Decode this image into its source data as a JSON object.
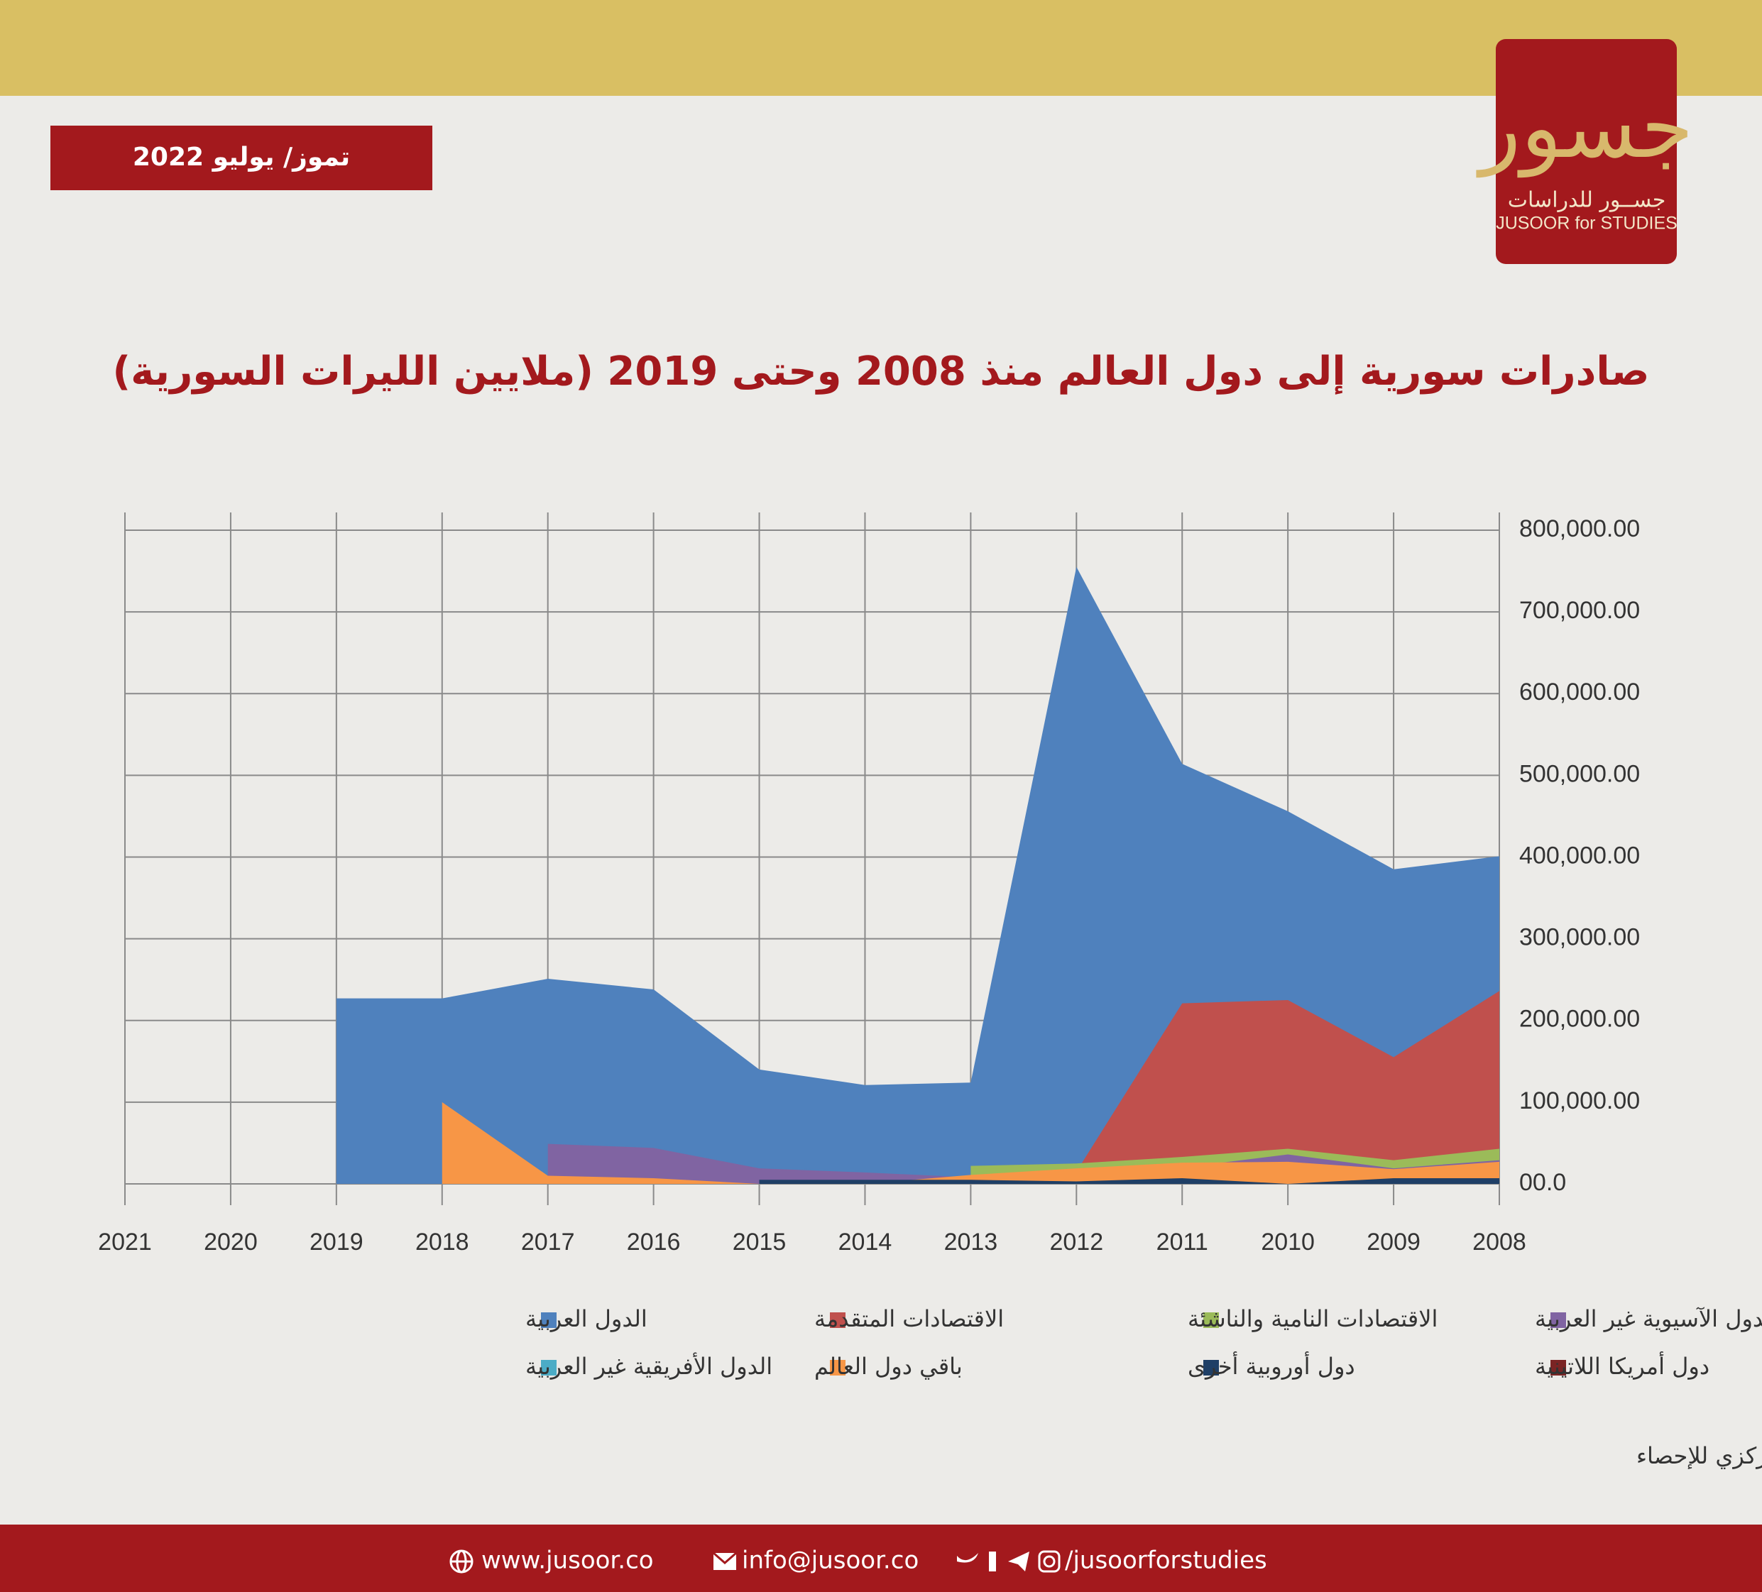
{
  "logo": {
    "mark": "جسور",
    "name_ar": "جســور للدراسات",
    "name_en": "JUSOOR for STUDIES"
  },
  "date": "تموز/ يوليو 2022",
  "chart_data": {
    "type": "area",
    "title": "صادرات سورية إلى دول العالم منذ 2008 وحتى 2019 (ملايين الليرات السورية)",
    "categories": [
      "2021",
      "2020",
      "2019",
      "2018",
      "2017",
      "2016",
      "2015",
      "2014",
      "2013",
      "2012",
      "2011",
      "2010",
      "2009",
      "2008"
    ],
    "ylim": [
      0,
      800000
    ],
    "yticks": [
      {
        "value": 0,
        "label": "00.0"
      },
      {
        "value": 100000,
        "label": "100,000.00"
      },
      {
        "value": 200000,
        "label": "200,000.00"
      },
      {
        "value": 300000,
        "label": "300,000.00"
      },
      {
        "value": 400000,
        "label": "400,000.00"
      },
      {
        "value": 500000,
        "label": "500,000.00"
      },
      {
        "value": 600000,
        "label": "600,000.00"
      },
      {
        "value": 700000,
        "label": "700,000.00"
      },
      {
        "value": 800000,
        "label": "800,000.00"
      }
    ],
    "grid": true,
    "series": [
      {
        "name": "الدول العربية",
        "color": "#4f81bd",
        "values": [
          null,
          null,
          227000,
          227000,
          251000,
          238000,
          140000,
          121000,
          124000,
          755000,
          514000,
          456000,
          385000,
          401000
        ]
      },
      {
        "name": "الاقتصادات المتقدمة",
        "color": "#c0504d",
        "values": [
          null,
          null,
          null,
          null,
          null,
          null,
          null,
          null,
          null,
          15000,
          221000,
          225000,
          155000,
          236000
        ]
      },
      {
        "name": "الاقتصادات النامية والناشئة",
        "color": "#9bbb59",
        "values": [
          null,
          null,
          null,
          null,
          null,
          null,
          null,
          null,
          22000,
          25000,
          33000,
          43000,
          29000,
          43000
        ]
      },
      {
        "name": "الدول الآسيوية غير العربية",
        "color": "#8064a2",
        "values": [
          null,
          null,
          null,
          null,
          49000,
          44000,
          19000,
          14000,
          8000,
          5000,
          20000,
          36000,
          19000,
          29000
        ]
      },
      {
        "name": "باقي دول العالم",
        "color": "#f79646",
        "values": [
          null,
          null,
          null,
          100000,
          10000,
          7000,
          0,
          0,
          11000,
          19000,
          26000,
          27000,
          18000,
          27000
        ]
      },
      {
        "name": "دول أوروبية أخرى",
        "color": "#1f3f66",
        "values": [
          null,
          null,
          null,
          null,
          null,
          null,
          5000,
          5000,
          5000,
          3000,
          7000,
          0,
          7000,
          7000
        ]
      },
      {
        "name": "دول أمريكا اللاتينية",
        "color": "#7b2424",
        "values": [
          null,
          null,
          0,
          0,
          0,
          0,
          0,
          0,
          0,
          0,
          0,
          0,
          0,
          0
        ]
      },
      {
        "name": "الدول الأفريقية غير العربية",
        "color": "#4bacc6",
        "values": [
          null,
          null,
          0,
          0,
          0,
          0,
          0,
          0,
          0,
          0,
          0,
          0,
          0,
          0
        ]
      }
    ]
  },
  "source": "المصدر: بيانات صندوق النقد العربي والمكتب المركزي للإحصاء",
  "footer": {
    "website": "www.jusoor.co",
    "email": "info@jusoor.co",
    "social": "/jusoorforstudies"
  }
}
